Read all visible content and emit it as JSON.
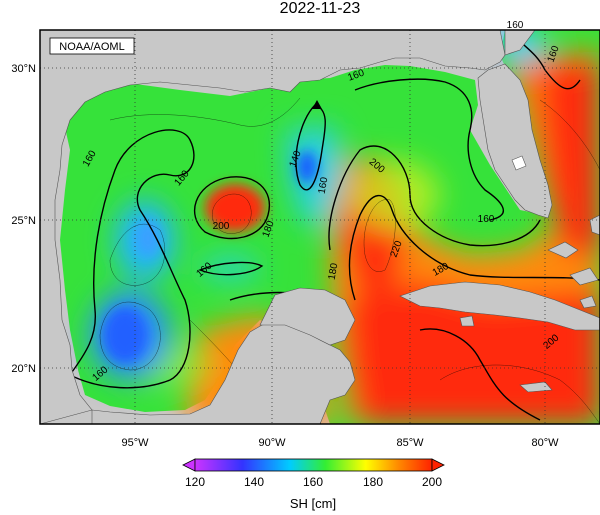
{
  "title": "2022-11-23",
  "credit": "NOAA/AOML",
  "map": {
    "lat_labels": [
      "30°N",
      "25°N",
      "20°N"
    ],
    "lon_labels": [
      "95°W",
      "90°W",
      "85°W",
      "80°W"
    ],
    "contour_labels": [
      "160",
      "160",
      "160",
      "160",
      "160",
      "160",
      "140",
      "160",
      "200",
      "180",
      "200",
      "220",
      "180",
      "180",
      "160",
      "200",
      "160"
    ],
    "marker": "triangle",
    "land_color": "#c8c8c8",
    "grid": true
  },
  "colorbar": {
    "ticks": [
      "120",
      "140",
      "160",
      "180",
      "200"
    ],
    "label": "SH [cm]",
    "colors": [
      "#cc33ff",
      "#3333ff",
      "#00ccff",
      "#33ee33",
      "#ffff00",
      "#ff8800",
      "#ff2200"
    ]
  }
}
